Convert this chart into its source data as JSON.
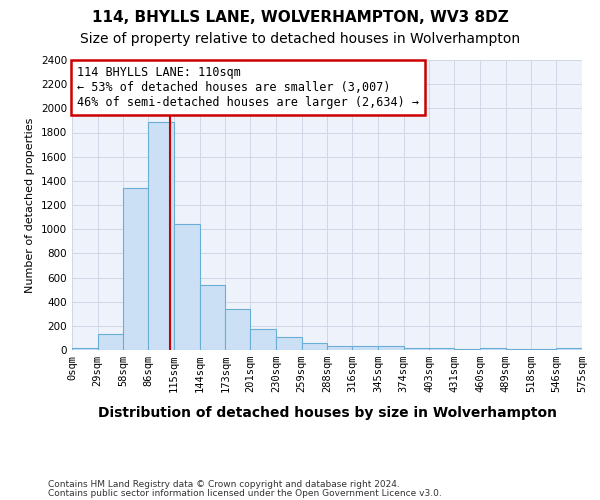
{
  "title": "114, BHYLLS LANE, WOLVERHAMPTON, WV3 8DZ",
  "subtitle": "Size of property relative to detached houses in Wolverhampton",
  "xlabel": "Distribution of detached houses by size in Wolverhampton",
  "ylabel": "Number of detached properties",
  "footnote1": "Contains HM Land Registry data © Crown copyright and database right 2024.",
  "footnote2": "Contains public sector information licensed under the Open Government Licence v3.0.",
  "bar_labels": [
    "0sqm",
    "29sqm",
    "58sqm",
    "86sqm",
    "115sqm",
    "144sqm",
    "173sqm",
    "201sqm",
    "230sqm",
    "259sqm",
    "288sqm",
    "316sqm",
    "345sqm",
    "374sqm",
    "403sqm",
    "431sqm",
    "460sqm",
    "489sqm",
    "518sqm",
    "546sqm",
    "575sqm"
  ],
  "bar_values": [
    20,
    130,
    1340,
    1890,
    1040,
    540,
    340,
    170,
    105,
    55,
    35,
    35,
    30,
    20,
    20,
    5,
    20,
    5,
    5,
    20
  ],
  "bin_starts": [
    0,
    29,
    58,
    86,
    115,
    144,
    173,
    201,
    230,
    259,
    288,
    316,
    345,
    374,
    403,
    431,
    460,
    489,
    518,
    546
  ],
  "bin_ends": [
    29,
    58,
    86,
    115,
    144,
    173,
    201,
    230,
    259,
    288,
    316,
    345,
    374,
    403,
    431,
    460,
    489,
    518,
    546,
    575
  ],
  "bar_color": "#cce0f5",
  "bar_edge_color": "#6aaed6",
  "annotation_title": "114 BHYLLS LANE: 110sqm",
  "annotation_line1": "← 53% of detached houses are smaller (3,007)",
  "annotation_line2": "46% of semi-detached houses are larger (2,634) →",
  "red_line_x": 110,
  "ylim": [
    0,
    2400
  ],
  "yticks": [
    0,
    200,
    400,
    600,
    800,
    1000,
    1200,
    1400,
    1600,
    1800,
    2000,
    2200,
    2400
  ],
  "grid_color": "#d0d8e8",
  "background_color": "#eef2fb",
  "annotation_box_color": "#ffffff",
  "annotation_box_edge": "#cc0000",
  "red_line_color": "#cc0000",
  "title_fontsize": 11,
  "subtitle_fontsize": 10,
  "xlabel_fontsize": 10,
  "ylabel_fontsize": 8,
  "tick_fontsize": 7.5,
  "annotation_fontsize": 8.5,
  "footnote_fontsize": 6.5
}
